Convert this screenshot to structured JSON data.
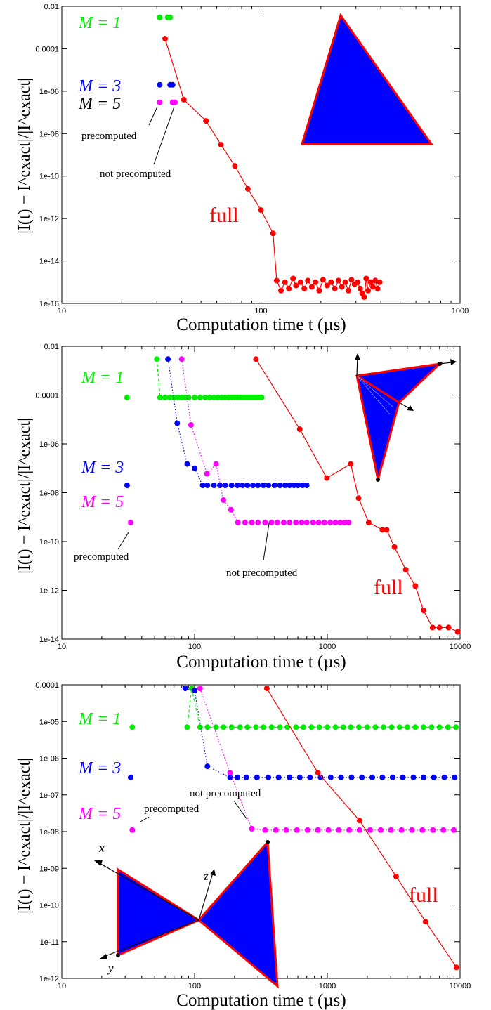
{
  "chart_data": [
    {
      "type": "scatter",
      "xlabel": "Computation time t (µs)",
      "ylabel": "|I(t) − I^exact|/|I^exact|",
      "x_log": true,
      "y_log": true,
      "xlim": [
        10,
        1000
      ],
      "ylim": [
        1e-16,
        0.01
      ],
      "xticks": [
        "10",
        "100",
        "1000"
      ],
      "yticks": [
        "1e-16",
        "1e-14",
        "1e-12",
        "1e-10",
        "1e-08",
        "1e-06",
        "0.0001",
        "0.01"
      ],
      "series": [
        {
          "name": "M = 1",
          "color": "#00ee00",
          "style": "points",
          "x": [
            31,
            34,
            35
          ],
          "y": [
            0.003,
            0.003,
            0.003
          ]
        },
        {
          "name": "M = 3",
          "color": "#0000ff",
          "style": "points",
          "x": [
            31,
            35,
            36
          ],
          "y": [
            2e-06,
            2e-06,
            2e-06
          ]
        },
        {
          "name": "M = 5",
          "color": "#ff00ff",
          "style": "points",
          "x": [
            31,
            36,
            37
          ],
          "y": [
            3e-07,
            3e-07,
            3e-07
          ]
        },
        {
          "name": "full",
          "color": "#ff0000",
          "style": "line",
          "x": [
            33,
            41,
            53,
            63,
            74,
            86,
            100,
            115,
            120,
            126,
            132,
            138,
            145,
            150,
            158,
            165,
            172,
            180,
            188,
            196,
            205,
            215,
            225,
            235,
            245,
            255,
            265,
            275,
            285,
            295,
            305,
            315,
            322,
            330,
            338,
            345,
            355,
            365,
            375,
            385,
            395
          ],
          "y": [
            0.0003,
            4e-07,
            4e-08,
            3e-09,
            3e-10,
            2.5e-11,
            2.5e-12,
            2e-13,
            1.2e-15,
            4e-16,
            1e-15,
            5e-16,
            1.5e-15,
            7e-16,
            1e-15,
            5e-16,
            1.2e-15,
            6e-16,
            1e-15,
            4e-16,
            1.3e-15,
            7e-16,
            1e-15,
            5e-16,
            1.2e-15,
            6e-16,
            1e-15,
            4e-16,
            1.3e-15,
            8e-16,
            1e-15,
            5e-16,
            3e-16,
            2e-16,
            1.5e-15,
            4e-16,
            1e-15,
            6e-16,
            1.2e-15,
            5e-16,
            1e-15
          ]
        }
      ],
      "labels": {
        "m1": "M = 1",
        "m3": "M = 3",
        "m5": "M = 5",
        "pre": "precomputed",
        "notpre": "not precomputed",
        "full": "full"
      }
    },
    {
      "type": "line",
      "xlabel": "Computation time t (µs)",
      "ylabel": "|I(t) − I^exact|/|I^exact|",
      "x_log": true,
      "y_log": true,
      "xlim": [
        10,
        10000
      ],
      "ylim": [
        1e-14,
        0.01
      ],
      "xticks": [
        "10",
        "100",
        "1000",
        "10000"
      ],
      "yticks": [
        "1e-14",
        "1e-12",
        "1e-10",
        "1e-08",
        "1e-06",
        "0.0001",
        "0.01"
      ],
      "series": [
        {
          "name": "M = 1",
          "color": "#00ee00",
          "style": "dashed",
          "x": [
            52,
            55,
            60,
            65,
            70,
            75,
            80,
            85,
            90,
            100,
            110,
            120,
            130,
            140,
            150,
            160,
            170,
            180,
            190,
            200,
            210,
            220,
            230,
            240,
            250,
            260,
            270,
            280,
            290,
            300,
            310,
            320
          ],
          "y": [
            0.003,
            8e-05,
            8e-05,
            8e-05,
            8e-05,
            8e-05,
            8e-05,
            8e-05,
            8e-05,
            8e-05,
            8e-05,
            8e-05,
            8e-05,
            8e-05,
            8e-05,
            8e-05,
            8e-05,
            8e-05,
            8e-05,
            8e-05,
            8e-05,
            8e-05,
            8e-05,
            8e-05,
            8e-05,
            8e-05,
            8e-05,
            8e-05,
            8e-05,
            8e-05,
            8e-05,
            8e-05
          ]
        },
        {
          "name": "M = 3",
          "color": "#0000ff",
          "style": "dotted",
          "x": [
            63,
            74,
            88,
            100,
            115,
            125,
            140,
            155,
            170,
            190,
            210,
            230,
            250,
            275,
            300,
            330,
            360,
            400,
            440,
            480,
            520,
            560,
            600,
            650,
            700
          ],
          "y": [
            0.003,
            7e-06,
            1.5e-07,
            1e-07,
            2e-08,
            2e-08,
            2e-08,
            2e-08,
            2e-08,
            2e-08,
            2e-08,
            2e-08,
            2e-08,
            2e-08,
            2e-08,
            2e-08,
            2e-08,
            2e-08,
            2e-08,
            2e-08,
            2e-08,
            2e-08,
            2e-08,
            2e-08,
            2e-08
          ]
        },
        {
          "name": "M = 5",
          "color": "#ff00ff",
          "style": "dotted",
          "x": [
            80,
            94,
            124,
            145,
            165,
            188,
            212,
            240,
            270,
            300,
            340,
            380,
            420,
            470,
            520,
            580,
            640,
            700,
            780,
            860,
            950,
            1050,
            1150,
            1250,
            1350,
            1450
          ],
          "y": [
            0.003,
            6e-06,
            6e-08,
            1.5e-07,
            5e-09,
            2e-09,
            6e-10,
            6e-10,
            6e-10,
            6e-10,
            6e-10,
            6e-10,
            6e-10,
            6e-10,
            6e-10,
            6e-10,
            6e-10,
            6e-10,
            6e-10,
            6e-10,
            6e-10,
            6e-10,
            6e-10,
            6e-10,
            6e-10,
            6e-10
          ]
        },
        {
          "name": "M = 1 precomputed",
          "color": "#00ee00",
          "style": "points",
          "x": [
            31
          ],
          "y": [
            8e-05
          ]
        },
        {
          "name": "M = 3 precomputed",
          "color": "#0000ff",
          "style": "points",
          "x": [
            31
          ],
          "y": [
            2e-08
          ]
        },
        {
          "name": "M = 5 precomputed",
          "color": "#ff00ff",
          "style": "points",
          "x": [
            33
          ],
          "y": [
            6e-10
          ]
        },
        {
          "name": "full",
          "color": "#ff0000",
          "style": "line",
          "x": [
            290,
            620,
            990,
            1500,
            1720,
            2050,
            2600,
            2800,
            3200,
            3900,
            4600,
            5300,
            6200,
            7000,
            8200,
            9600
          ],
          "y": [
            0.003,
            4e-06,
            4e-08,
            1.5e-07,
            6e-09,
            6e-10,
            3e-10,
            3e-10,
            6e-11,
            7e-12,
            1.5e-12,
            1.5e-13,
            3e-14,
            3e-14,
            3e-14,
            2e-14
          ]
        }
      ],
      "labels": {
        "m1": "M = 1",
        "m3": "M = 3",
        "m5": "M = 5",
        "pre": "precomputed",
        "notpre": "not precomputed",
        "full": "full"
      }
    },
    {
      "type": "line",
      "xlabel": "Computation time t (µs)",
      "ylabel": "|I(t) − I^exact|/|I^exact|",
      "x_log": true,
      "y_log": true,
      "xlim": [
        10,
        10000
      ],
      "ylim": [
        1e-12,
        0.0001
      ],
      "xticks": [
        "10",
        "100",
        "1000",
        "10000"
      ],
      "yticks": [
        "1e-12",
        "1e-11",
        "1e-10",
        "1e-09",
        "1e-08",
        "1e-07",
        "1e-06",
        "1e-05",
        "0.0001"
      ],
      "series": [
        {
          "name": "M = 1",
          "color": "#00ee00",
          "style": "dashed",
          "x": [
            88,
            95,
            110,
            125,
            145,
            165,
            190,
            220,
            250,
            290,
            330,
            380,
            440,
            500,
            580,
            660,
            760,
            870,
            1000,
            1150,
            1320,
            1500,
            1730,
            2000,
            2300,
            2650,
            3050,
            3500,
            4000,
            4600,
            5300,
            6100,
            7000,
            8100,
            9300
          ],
          "y": [
            7e-06,
            8e-05,
            7e-06,
            7e-06,
            7e-06,
            7e-06,
            7e-06,
            7e-06,
            7e-06,
            7e-06,
            7e-06,
            7e-06,
            7e-06,
            7e-06,
            7e-06,
            7e-06,
            7e-06,
            7e-06,
            7e-06,
            7e-06,
            7e-06,
            7e-06,
            7e-06,
            7e-06,
            7e-06,
            7e-06,
            7e-06,
            7e-06,
            7e-06,
            7e-06,
            7e-06,
            7e-06,
            7e-06,
            7e-06,
            7e-06
          ]
        },
        {
          "name": "M = 3",
          "color": "#0000ff",
          "style": "dotted",
          "x": [
            85,
            100,
            125,
            185,
            210,
            245,
            295,
            360,
            430,
            520,
            620,
            740,
            890,
            1060,
            1270,
            1520,
            1820,
            2180,
            2600,
            3100,
            3700,
            4450,
            5300,
            6350,
            7600,
            9100
          ],
          "y": [
            8e-05,
            7e-05,
            6e-07,
            3e-07,
            3e-07,
            3e-07,
            3e-07,
            3e-07,
            3e-07,
            3e-07,
            3e-07,
            3e-07,
            3e-07,
            3e-07,
            3e-07,
            3e-07,
            3e-07,
            3e-07,
            3e-07,
            3e-07,
            3e-07,
            3e-07,
            3e-07,
            3e-07,
            3e-07,
            3e-07
          ]
        },
        {
          "name": "M = 5",
          "color": "#ff00ff",
          "style": "dotted",
          "x": [
            110,
            185,
            270,
            340,
            410,
            490,
            590,
            710,
            850,
            1020,
            1220,
            1460,
            1750,
            2100,
            2520,
            3020,
            3620,
            4340,
            5200,
            6240,
            7480,
            8970
          ],
          "y": [
            8e-05,
            4e-07,
            1.2e-08,
            1.1e-08,
            1.1e-08,
            1.1e-08,
            1.1e-08,
            1.1e-08,
            1.1e-08,
            1.1e-08,
            1.1e-08,
            1.1e-08,
            1.1e-08,
            1.1e-08,
            1.1e-08,
            1.1e-08,
            1.1e-08,
            1.1e-08,
            1.1e-08,
            1.1e-08,
            1.1e-08,
            1.1e-08
          ]
        },
        {
          "name": "M = 1 precomputed",
          "color": "#00ee00",
          "style": "points",
          "x": [
            34
          ],
          "y": [
            7e-06
          ]
        },
        {
          "name": "M = 3 precomputed",
          "color": "#0000ff",
          "style": "points",
          "x": [
            33
          ],
          "y": [
            3e-07
          ]
        },
        {
          "name": "M = 5 precomputed",
          "color": "#ff00ff",
          "style": "points",
          "x": [
            34
          ],
          "y": [
            1.1e-08
          ]
        },
        {
          "name": "full",
          "color": "#ff0000",
          "style": "line",
          "x": [
            350,
            850,
            1750,
            3300,
            5500,
            9400
          ],
          "y": [
            8e-05,
            4e-07,
            2e-08,
            6e-10,
            3.5e-11,
            2e-12
          ]
        }
      ],
      "labels": {
        "m1": "M = 1",
        "m3": "M = 3",
        "m5": "M = 5",
        "pre": "precomputed",
        "notpre": "not precomputed",
        "full": "full",
        "ax_x": "x",
        "ax_y": "y",
        "ax_z": "z"
      }
    }
  ]
}
